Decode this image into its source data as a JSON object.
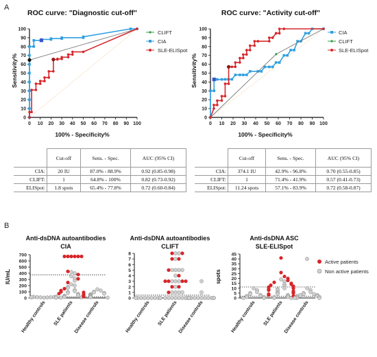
{
  "panel_labels": {
    "a": "A",
    "b": "B"
  },
  "roc_axes": {
    "xlabel": "100% - Specificity%",
    "ylabel": "Sensitivity%",
    "ticks": [
      "0",
      "10",
      "20",
      "30",
      "40",
      "50",
      "60",
      "70",
      "80",
      "90",
      "100"
    ]
  },
  "colors": {
    "CLIFT": "#2e9e3c",
    "CIA": "#2f9fe0",
    "SLE-ELISpot": "#d7262a",
    "blue_marker": "#3a55c8",
    "ref": "#f2cfa0",
    "grey_marker": "#d0d0d0"
  },
  "table_diag": {
    "headers": [
      "Cut-off",
      "Sens. - Spec.",
      "AUC (95% CI)"
    ],
    "rows": [
      {
        "label": "CIA:",
        "cutoff": "20 IU",
        "sens_spec": "87.0% - 88.9%",
        "auc": "0.92 (0.85-0.98)"
      },
      {
        "label": "CLIFT:",
        "cutoff": "1",
        "sens_spec": "64.8% - 100%",
        "auc": "0.82 (0.73-0.92)"
      },
      {
        "label": "ELISpot:",
        "cutoff": "1.8 spots",
        "sens_spec": "65.4% - 77.8%",
        "auc": "0.72 (0.60-0.84)"
      }
    ]
  },
  "table_act": {
    "headers": [
      "Cut-off",
      "Sens. - Spec.",
      "AUC (95% CI)"
    ],
    "rows": [
      {
        "label": "CIA:",
        "cutoff": "374.1 IU",
        "sens_spec": "42.9% - 96.8%",
        "auc": "0.70 (0.55-0.85)"
      },
      {
        "label": "CLIFT:",
        "cutoff": "1",
        "sens_spec": "71.4% - 41.9%",
        "auc": "0.57 (0.41-0.73)"
      },
      {
        "label": "ELISpot:",
        "cutoff": "11.24 spots",
        "sens_spec": "57.1% - 83.9%",
        "auc": "0.72 (0.58-0.87)"
      }
    ]
  },
  "scatter_legend": {
    "active": "Active patients",
    "non_active": "Non active patients"
  },
  "chart_data": [
    {
      "type": "line",
      "title": "ROC curve: \"Diagnostic cut-off\"",
      "xlabel": "100% - Specificity%",
      "ylabel": "Sensitivity%",
      "xlim": [
        0,
        100
      ],
      "ylim": [
        0,
        100
      ],
      "legend_position": "top-right",
      "series": [
        {
          "name": "CLIFT",
          "x": [
            0,
            0,
            100
          ],
          "y": [
            0,
            64.8,
            100
          ]
        },
        {
          "name": "CIA",
          "x": [
            0,
            0,
            0,
            0,
            0,
            0,
            0,
            0,
            0,
            4,
            4,
            11.1,
            11.1,
            20,
            20,
            30,
            30,
            50,
            50,
            94,
            100
          ],
          "y": [
            0,
            10,
            20,
            30,
            40,
            50,
            60,
            70,
            80,
            80,
            87,
            87,
            88,
            88,
            89,
            89,
            90,
            90,
            91,
            100,
            100
          ]
        },
        {
          "name": "SLE-ELISpot",
          "x": [
            0,
            0,
            2,
            2,
            6,
            6,
            10,
            10,
            14,
            14,
            18,
            18,
            22.2,
            22.2,
            26,
            26,
            30,
            30,
            36,
            36,
            40,
            40,
            50,
            100
          ],
          "y": [
            0,
            6,
            6,
            31,
            31,
            38,
            38,
            41,
            41,
            45,
            45,
            52,
            52,
            65.4,
            65.4,
            66,
            66,
            68,
            68,
            71,
            71,
            74,
            74,
            100
          ]
        }
      ]
    },
    {
      "type": "line",
      "title": "ROC curve: \"Activity cut-off\"",
      "xlabel": "100% - Specificity%",
      "ylabel": "Sensitivity%",
      "xlim": [
        0,
        100
      ],
      "ylim": [
        0,
        100
      ],
      "legend_position": "top-right",
      "series": [
        {
          "name": "CIA",
          "x": [
            0,
            0,
            3.2,
            3.2,
            6,
            10,
            13,
            16,
            19,
            22,
            26,
            29,
            32,
            35,
            42,
            45,
            48,
            52,
            55,
            58,
            61,
            65,
            68,
            71,
            74,
            77,
            80,
            84,
            87,
            90,
            100
          ],
          "y": [
            0,
            30,
            30,
            42.9,
            42.9,
            42.9,
            43,
            43,
            43,
            48,
            48,
            48,
            48,
            52,
            52,
            52,
            57,
            57,
            57,
            62,
            62,
            70,
            70,
            76,
            76,
            86,
            86,
            95,
            95,
            100,
            100
          ]
        },
        {
          "name": "CLIFT",
          "x": [
            0,
            58.1,
            100
          ],
          "y": [
            0,
            71.4,
            100
          ]
        },
        {
          "name": "SLE-ELISpot",
          "x": [
            0,
            3,
            3,
            6,
            6,
            10,
            10,
            13,
            13,
            16.1,
            16.1,
            19,
            22,
            22,
            26,
            26,
            29,
            29,
            32,
            32,
            35,
            35,
            39,
            39,
            42,
            42,
            52,
            52,
            55,
            55,
            58,
            58,
            61,
            61,
            65,
            65,
            100
          ],
          "y": [
            0,
            10,
            14,
            14,
            19,
            19,
            24,
            24,
            38,
            38,
            57.1,
            57.1,
            57.1,
            62,
            62,
            67,
            67,
            71,
            71,
            76,
            76,
            81,
            81,
            86,
            86,
            86,
            86,
            90,
            90,
            90,
            95,
            95,
            95,
            100,
            100,
            100,
            100
          ]
        }
      ]
    },
    {
      "type": "scatter",
      "title": "Anti-dsDNA autoantibodies\nCIA",
      "ylabel": "IU/mL",
      "categories": [
        "Healthy controls",
        "SLE patients",
        "Disease controls"
      ],
      "ylim": [
        0,
        700
      ],
      "yticks": [
        "0",
        "100",
        "200",
        "300",
        "400",
        "500",
        "600",
        "700"
      ],
      "cutoffs": [
        374.1,
        20
      ],
      "groups": [
        {
          "category": "Healthy controls",
          "active": [],
          "non_active": [
            5,
            8,
            10,
            12,
            14,
            15,
            18,
            20,
            9,
            6,
            11,
            7
          ]
        },
        {
          "category": "SLE patients",
          "active": [
            672,
            672,
            672,
            672,
            672,
            672,
            430,
            380,
            310,
            250,
            150,
            120,
            100,
            90,
            70,
            60,
            40,
            30,
            20
          ],
          "non_active": [
            420,
            400,
            350,
            320,
            280,
            220,
            200,
            180,
            160,
            130,
            110,
            95,
            80,
            65,
            50,
            45,
            35,
            25,
            15,
            10,
            5
          ]
        },
        {
          "category": "Disease controls",
          "active": [],
          "non_active": [
            140,
            120,
            100,
            90,
            80,
            70,
            60,
            50,
            40,
            30,
            20,
            10,
            5
          ]
        }
      ]
    },
    {
      "type": "scatter",
      "title": "Anti-dsDNA autoantibodies\nCLIFT",
      "categories": [
        "Healthy controls",
        "SLE patients",
        "Disease controls"
      ],
      "ylim": [
        0,
        8
      ],
      "yticks": [
        "0",
        "1",
        "2",
        "3",
        "4",
        "5",
        "6",
        "7",
        "8"
      ],
      "cutoffs": [
        0.5
      ],
      "groups": [
        {
          "category": "Healthy controls",
          "active": [],
          "non_active": [
            0,
            0,
            0,
            0,
            0,
            0,
            0,
            0,
            0,
            0
          ]
        },
        {
          "category": "SLE patients",
          "active": [
            8,
            8,
            7,
            7,
            5,
            4,
            3,
            3,
            3,
            3,
            2,
            2,
            1
          ],
          "non_active": [
            8,
            8,
            7,
            5,
            5,
            5,
            5,
            4,
            3,
            3,
            3,
            2,
            1,
            1,
            1,
            1,
            0,
            0,
            0,
            0,
            0,
            0,
            0,
            0
          ]
        },
        {
          "category": "Disease controls",
          "active": [],
          "non_active": [
            3,
            1,
            0,
            0,
            0,
            0,
            0,
            0,
            0,
            0,
            0,
            0,
            0,
            0
          ]
        }
      ]
    },
    {
      "type": "scatter",
      "title": "Anti-dsDNA ASC\nSLE-ELISpot",
      "ylabel": "spots",
      "categories": [
        "Healthy controls",
        "SLE patients",
        "Disease controls"
      ],
      "ylim": [
        0,
        45
      ],
      "yticks": [
        "0",
        "5",
        "10",
        "15",
        "20",
        "25",
        "30",
        "35",
        "40",
        "45"
      ],
      "cutoffs": [
        11.24,
        1.8
      ],
      "legend_position": "right",
      "groups": [
        {
          "category": "Healthy controls",
          "active": [],
          "non_active": [
            10,
            8,
            6,
            5,
            4,
            3,
            2,
            2,
            1,
            1,
            0,
            0
          ]
        },
        {
          "category": "SLE patients",
          "active": [
            41,
            26,
            22,
            20,
            18,
            16,
            15,
            14,
            13,
            12,
            11,
            10,
            9,
            8,
            7,
            6,
            5,
            4,
            3,
            2
          ],
          "non_active": [
            19,
            17,
            14,
            12,
            10,
            9,
            8,
            6,
            5,
            4,
            3,
            2,
            1,
            1,
            0,
            0
          ]
        },
        {
          "category": "Disease controls",
          "active": [],
          "non_active": [
            40,
            10,
            8,
            6,
            5,
            4,
            4,
            3,
            3,
            2,
            2,
            1,
            1,
            0,
            0,
            0
          ]
        }
      ]
    }
  ]
}
